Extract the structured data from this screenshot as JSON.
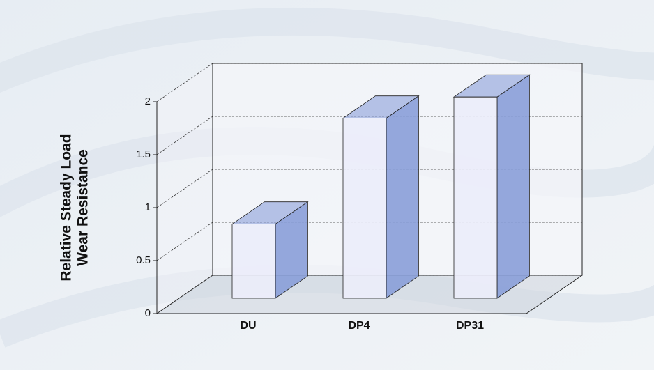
{
  "chart_data": {
    "type": "bar3d",
    "ylabel": [
      "Relative Steady Load",
      "Wear Resistance"
    ],
    "categories": [
      "DU",
      "DP4",
      "DP31"
    ],
    "values": [
      0.7,
      1.7,
      1.9
    ],
    "color": "#8a9fd8",
    "ylim": [
      0,
      2
    ],
    "yticks": [
      0,
      0.5,
      1,
      1.5,
      2
    ],
    "grid": true
  }
}
